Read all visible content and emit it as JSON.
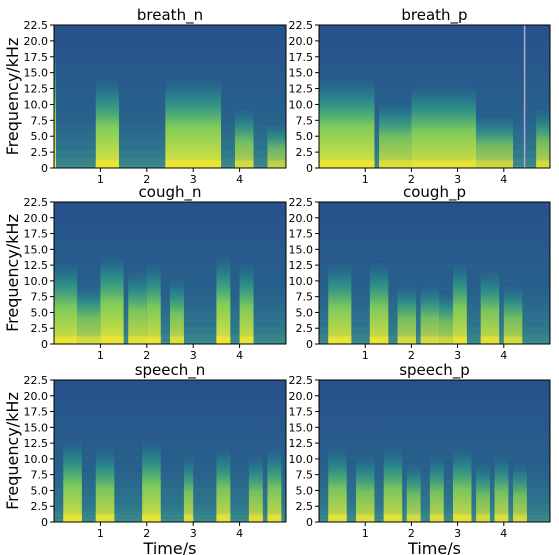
{
  "chart_data": [
    {
      "type": "heatmap",
      "title": "breath_n",
      "xlabel": "",
      "ylabel": "Frequency/kHz",
      "xlim": [
        0,
        5
      ],
      "ylim": [
        0,
        22.5
      ],
      "x_ticks": [
        "1",
        "2",
        "3",
        "4"
      ],
      "y_ticks": [
        "0",
        "2.5",
        "5.0",
        "7.5",
        "10.0",
        "12.5",
        "15.0",
        "17.5",
        "20.0",
        "22.5"
      ],
      "events": [
        [
          0.0,
          0.0,
          1.5
        ],
        [
          0.9,
          1.4,
          1.0
        ],
        [
          2.4,
          3.6,
          1.0
        ],
        [
          3.9,
          4.3,
          0.6
        ],
        [
          4.6,
          5.0,
          0.4
        ]
      ],
      "lines": []
    },
    {
      "type": "heatmap",
      "title": "breath_p",
      "xlabel": "",
      "ylabel": "",
      "xlim": [
        0,
        5
      ],
      "ylim": [
        0,
        22.5
      ],
      "x_ticks": [
        "1",
        "2",
        "3",
        "4"
      ],
      "y_ticks": [
        "0",
        "2.5",
        "5.0",
        "7.5",
        "10.0",
        "12.5",
        "15.0",
        "17.5",
        "20.0",
        "22.5"
      ],
      "events": [
        [
          0.0,
          1.2,
          1.0
        ],
        [
          1.3,
          2.0,
          0.7
        ],
        [
          2.0,
          3.4,
          0.9
        ],
        [
          3.4,
          4.2,
          0.5
        ],
        [
          4.7,
          5.0,
          0.6
        ]
      ],
      "lines": [
        4.45
      ]
    },
    {
      "type": "heatmap",
      "title": "cough_n",
      "xlabel": "",
      "ylabel": "Frequency/kHz",
      "xlim": [
        0,
        5
      ],
      "ylim": [
        0,
        22.5
      ],
      "x_ticks": [
        "1",
        "2",
        "3",
        "4"
      ],
      "y_ticks": [
        "0",
        "2.5",
        "5.0",
        "7.5",
        "10.0",
        "12.5",
        "15.0",
        "17.5",
        "20.0",
        "22.5"
      ],
      "events": [
        [
          0.0,
          0.5,
          0.9
        ],
        [
          0.5,
          1.0,
          0.6
        ],
        [
          1.0,
          1.5,
          1.0
        ],
        [
          1.6,
          2.0,
          0.8
        ],
        [
          2.0,
          2.3,
          0.9
        ],
        [
          2.5,
          2.8,
          0.7
        ],
        [
          3.5,
          3.8,
          1.0
        ],
        [
          4.0,
          4.3,
          0.9
        ]
      ],
      "lines": []
    },
    {
      "type": "heatmap",
      "title": "cough_p",
      "xlabel": "",
      "ylabel": "",
      "xlim": [
        0,
        5
      ],
      "ylim": [
        0,
        22.5
      ],
      "x_ticks": [
        "1",
        "2",
        "3",
        "4"
      ],
      "y_ticks": [
        "0",
        "2.5",
        "5.0",
        "7.5",
        "10.0",
        "12.5",
        "15.0",
        "17.5",
        "20.0",
        "22.5"
      ],
      "events": [
        [
          0.2,
          0.7,
          0.9
        ],
        [
          1.1,
          1.5,
          0.9
        ],
        [
          1.7,
          2.1,
          0.6
        ],
        [
          2.2,
          2.6,
          0.6
        ],
        [
          2.6,
          2.9,
          0.5
        ],
        [
          2.9,
          3.2,
          0.9
        ],
        [
          3.5,
          3.9,
          0.8
        ],
        [
          4.0,
          4.4,
          0.6
        ]
      ],
      "lines": []
    },
    {
      "type": "heatmap",
      "title": "speech_n",
      "xlabel": "Time/s",
      "ylabel": "Frequency/kHz",
      "xlim": [
        0,
        5
      ],
      "ylim": [
        0,
        22.5
      ],
      "x_ticks": [
        "1",
        "2",
        "3",
        "4"
      ],
      "y_ticks": [
        "0",
        "2.5",
        "5.0",
        "7.5",
        "10.0",
        "12.5",
        "15.0",
        "17.5",
        "20.0",
        "22.5"
      ],
      "events": [
        [
          0.2,
          0.6,
          0.9
        ],
        [
          0.9,
          1.3,
          0.8
        ],
        [
          1.9,
          2.3,
          0.9
        ],
        [
          2.8,
          3.0,
          0.7
        ],
        [
          3.5,
          3.8,
          0.8
        ],
        [
          4.2,
          4.5,
          0.7
        ],
        [
          4.6,
          4.9,
          0.8
        ]
      ],
      "lines": []
    },
    {
      "type": "heatmap",
      "title": "speech_p",
      "xlabel": "Time/s",
      "ylabel": "",
      "xlim": [
        0,
        5
      ],
      "ylim": [
        0,
        22.5
      ],
      "x_ticks": [
        "1",
        "2",
        "3",
        "4"
      ],
      "y_ticks": [
        "0",
        "2.5",
        "5.0",
        "7.5",
        "10.0",
        "12.5",
        "15.0",
        "17.5",
        "20.0",
        "22.5"
      ],
      "events": [
        [
          0.2,
          0.6,
          0.8
        ],
        [
          0.8,
          1.2,
          0.7
        ],
        [
          1.4,
          1.8,
          0.8
        ],
        [
          1.9,
          2.2,
          0.6
        ],
        [
          2.4,
          2.7,
          0.7
        ],
        [
          2.9,
          3.3,
          0.8
        ],
        [
          3.4,
          3.7,
          0.6
        ],
        [
          3.8,
          4.1,
          0.7
        ],
        [
          4.2,
          4.5,
          0.6
        ]
      ],
      "lines": []
    }
  ]
}
